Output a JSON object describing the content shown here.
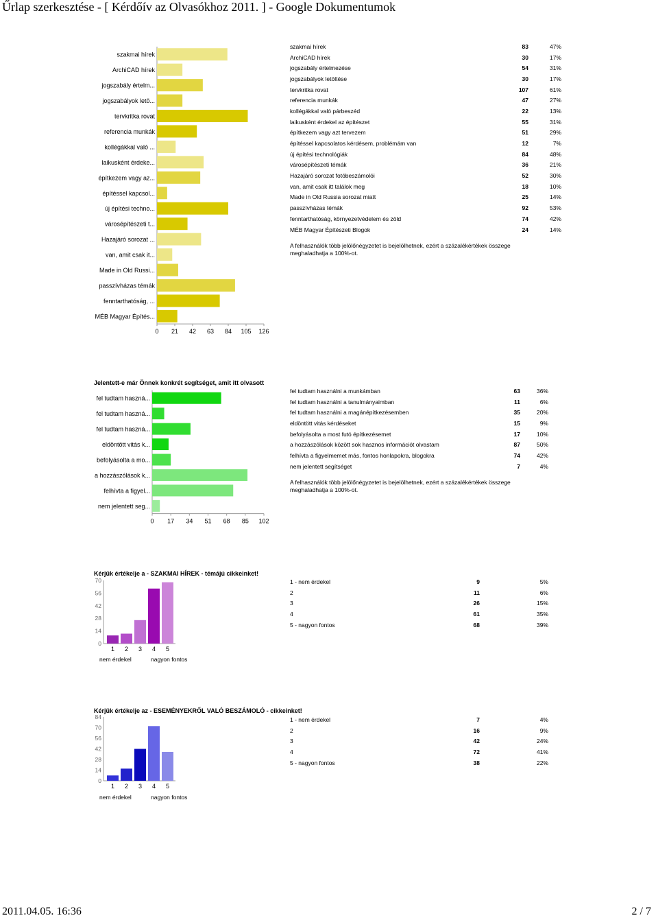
{
  "header": {
    "title": "Űrlap szerkesztése - [ Kérdőív az Olvasókhoz 2011. ] - Google Dokumentumok"
  },
  "footer": {
    "date": "2011.04.05. 16:36",
    "page": "2 / 7"
  },
  "section1": {
    "note": "A felhasználók több jelölőnégyzetet is bejelölhetnek, ezért a százalékértékek összege meghaladhatja a 100%-ot.",
    "rows": [
      {
        "label": "szakmai hírek",
        "count": "83",
        "pct": "47%"
      },
      {
        "label": "ArchiCAD hírek",
        "count": "30",
        "pct": "17%"
      },
      {
        "label": "jogszabály értelmezése",
        "count": "54",
        "pct": "31%"
      },
      {
        "label": "jogszabályok letöltése",
        "count": "30",
        "pct": "17%"
      },
      {
        "label": "tervkritka rovat",
        "count": "107",
        "pct": "61%"
      },
      {
        "label": "referencia munkák",
        "count": "47",
        "pct": "27%"
      },
      {
        "label": "kollégákkal való párbeszéd",
        "count": "22",
        "pct": "13%"
      },
      {
        "label": "laikusként érdekel az építészet",
        "count": "55",
        "pct": "31%"
      },
      {
        "label": "építkezem vagy azt tervezem",
        "count": "51",
        "pct": "29%"
      },
      {
        "label": "építéssel kapcsolatos kérdésem, problémám van",
        "count": "12",
        "pct": "7%"
      },
      {
        "label": "új építési technológiák",
        "count": "84",
        "pct": "48%"
      },
      {
        "label": "városépítészeti témák",
        "count": "36",
        "pct": "21%"
      },
      {
        "label": "Hazajáró sorozat fotóbeszámolói",
        "count": "52",
        "pct": "30%"
      },
      {
        "label": "van, amit csak itt találok meg",
        "count": "18",
        "pct": "10%"
      },
      {
        "label": "Made in Old Russia sorozat miatt",
        "count": "25",
        "pct": "14%"
      },
      {
        "label": "passzívházas témák",
        "count": "92",
        "pct": "53%"
      },
      {
        "label": "fenntarthatóság, környezetvédelem és zöld",
        "count": "74",
        "pct": "42%"
      },
      {
        "label": "MÉB Magyar Építészeti Blogok",
        "count": "24",
        "pct": "14%"
      }
    ],
    "chart_data": {
      "type": "bar",
      "orientation": "horizontal",
      "categories": [
        "szakmai hírek",
        "ArchiCAD hírek",
        "jogszabály értelm...",
        "jogszabályok letö...",
        "tervkritka rovat",
        "referencia munkák",
        "kollégákkal való ...",
        "laikusként érdeke...",
        "építkezem vagy az...",
        "építéssel kapcsol...",
        "új építési techno...",
        "városépítészeti t...",
        "Hazajáró sorozat ...",
        "van, amit csak it...",
        "Made in Old Russi...",
        "passzívházas témák",
        "fenntarthatóság, ...",
        "MÉB Magyar Építés..."
      ],
      "values": [
        83,
        30,
        54,
        30,
        107,
        47,
        22,
        55,
        51,
        12,
        84,
        36,
        52,
        18,
        25,
        92,
        74,
        24
      ],
      "xlim": [
        0,
        126
      ],
      "ticks": [
        "0",
        "21",
        "42",
        "63",
        "84",
        "105",
        "126"
      ],
      "colors": [
        "#ede688",
        "#ede688",
        "#e2d641",
        "#e2d641",
        "#d8c900",
        "#d8c900",
        "#ede688",
        "#ede688",
        "#e2d641",
        "#e2d641",
        "#d8c900",
        "#d8c900",
        "#ede688",
        "#ede688",
        "#e2d641",
        "#e2d641",
        "#d8c900",
        "#d8c900"
      ]
    }
  },
  "section2": {
    "title": "Jelentett-e már Önnek konkrét segítséget, amit itt olvasott",
    "note": "A felhasználók több jelölőnégyzetet is bejelölhetnek, ezért a százalékértékek összege meghaladhatja a 100%-ot.",
    "rows": [
      {
        "label": "fel tudtam használni a munkámban",
        "count": "63",
        "pct": "36%"
      },
      {
        "label": "fel tudtam használni a tanulmányaimban",
        "count": "11",
        "pct": "6%"
      },
      {
        "label": "fel tudtam használni a magánépítkezésemben",
        "count": "35",
        "pct": "20%"
      },
      {
        "label": "eldöntött vitás kérdéseket",
        "count": "15",
        "pct": "9%"
      },
      {
        "label": "befolyásolta a most futó építkezésemet",
        "count": "17",
        "pct": "10%"
      },
      {
        "label": "a hozzászólások között sok hasznos információt olvastam",
        "count": "87",
        "pct": "50%"
      },
      {
        "label": "felhívta a figyelmemet más, fontos honlapokra, blogokra",
        "count": "74",
        "pct": "42%"
      },
      {
        "label": "nem jelentett segítséget",
        "count": "7",
        "pct": "4%"
      }
    ],
    "chart_data": {
      "type": "bar",
      "orientation": "horizontal",
      "categories": [
        "fel tudtam haszná...",
        "fel tudtam haszná...",
        "fel tudtam haszná...",
        "eldöntött vitás k...",
        "befolyásolta a mo...",
        "a hozzászólások k...",
        "felhívta a figyel...",
        "nem jelentett seg..."
      ],
      "values": [
        63,
        11,
        35,
        15,
        17,
        87,
        74,
        7
      ],
      "xlim": [
        0,
        102
      ],
      "ticks": [
        "0",
        "17",
        "34",
        "51",
        "68",
        "85",
        "102"
      ],
      "colors": [
        "#11d711",
        "#31dd31",
        "#31dd31",
        "#11d711",
        "#4de24d",
        "#7de77d",
        "#7de77d",
        "#9cec9c"
      ]
    }
  },
  "section3": {
    "title": "Kérjük értékelje a - SZAKMAI HÍREK - témájú cikkeinket!",
    "low": "nem érdekel",
    "high": "nagyon fontos",
    "rows": [
      {
        "label": "1 -  nem érdekel",
        "count": "9",
        "pct": "5%"
      },
      {
        "label": "2",
        "count": "11",
        "pct": "6%"
      },
      {
        "label": "3",
        "count": "26",
        "pct": "15%"
      },
      {
        "label": "4",
        "count": "61",
        "pct": "35%"
      },
      {
        "label": "5 -  nagyon fontos",
        "count": "68",
        "pct": "39%"
      }
    ],
    "chart_data": {
      "type": "bar",
      "categories": [
        "1",
        "2",
        "3",
        "4",
        "5"
      ],
      "values": [
        9,
        11,
        26,
        61,
        68
      ],
      "ylim": [
        0,
        70
      ],
      "yticks": [
        "0",
        "14",
        "28",
        "42",
        "56",
        "70"
      ],
      "colors": [
        "#9926b3",
        "#b34dc9",
        "#c070d3",
        "#990ab0",
        "#cc85d9"
      ]
    }
  },
  "section4": {
    "title": "Kérjük értékelje az - ESEMÉNYEKRŐL VALÓ BESZÁMOLÓ - cikkeinket!",
    "low": "nem érdekel",
    "high": "nagyon fontos",
    "rows": [
      {
        "label": "1 -  nem érdekel",
        "count": "7",
        "pct": "4%"
      },
      {
        "label": "2",
        "count": "16",
        "pct": "9%"
      },
      {
        "label": "3",
        "count": "42",
        "pct": "24%"
      },
      {
        "label": "4",
        "count": "72",
        "pct": "41%"
      },
      {
        "label": "5 -  nagyon fontos",
        "count": "38",
        "pct": "22%"
      }
    ],
    "chart_data": {
      "type": "bar",
      "categories": [
        "1",
        "2",
        "3",
        "4",
        "5"
      ],
      "values": [
        7,
        16,
        42,
        72,
        38
      ],
      "ylim": [
        0,
        84
      ],
      "yticks": [
        "0",
        "14",
        "28",
        "42",
        "56",
        "70",
        "84"
      ],
      "colors": [
        "#3333d9",
        "#2222cc",
        "#0a0abb",
        "#6666e6",
        "#8a8ae8"
      ]
    }
  }
}
